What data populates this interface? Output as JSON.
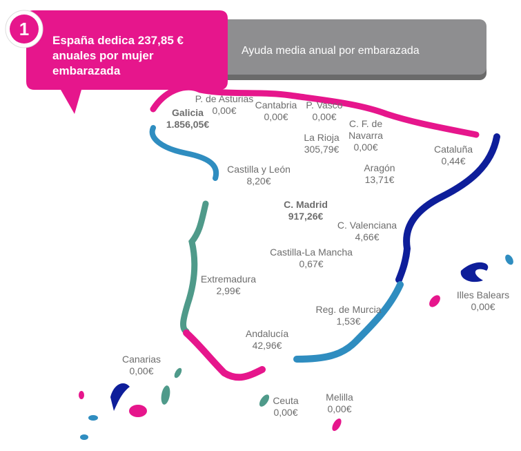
{
  "header": {
    "badge": "1",
    "title_lines": [
      "España dedica 237,85 €",
      "anuales por mujer",
      "embarazada"
    ],
    "subtitle": "Ayuda media anual por embarazada"
  },
  "regions": [
    {
      "name_lines": [
        "Galicia"
      ],
      "value": "1.856,05€",
      "bold": true
    },
    {
      "name_lines": [
        "P. de Asturias"
      ],
      "value": "0,00€"
    },
    {
      "name_lines": [
        "Cantabria"
      ],
      "value": "0,00€"
    },
    {
      "name_lines": [
        "P. Vasco"
      ],
      "value": "0,00€"
    },
    {
      "name_lines": [
        "C. F. de",
        "Navarra"
      ],
      "value": "0,00€"
    },
    {
      "name_lines": [
        "La Rioja"
      ],
      "value": "305,79€"
    },
    {
      "name_lines": [
        "Cataluña"
      ],
      "value": "0,44€"
    },
    {
      "name_lines": [
        "Castilla y León"
      ],
      "value": "8,20€"
    },
    {
      "name_lines": [
        "Aragón"
      ],
      "value": "13,71€"
    },
    {
      "name_lines": [
        "C. Madrid"
      ],
      "value": "917,26€",
      "bold": true
    },
    {
      "name_lines": [
        "C. Valenciana"
      ],
      "value": "4,66€"
    },
    {
      "name_lines": [
        "Castilla-La Mancha"
      ],
      "value": "0,67€"
    },
    {
      "name_lines": [
        "Extremadura"
      ],
      "value": "2,99€"
    },
    {
      "name_lines": [
        "Illes Balears"
      ],
      "value": "0,00€"
    },
    {
      "name_lines": [
        "Reg. de Murcia"
      ],
      "value": "1,53€"
    },
    {
      "name_lines": [
        "Andalucía"
      ],
      "value": "42,96€"
    },
    {
      "name_lines": [
        "Canarias"
      ],
      "value": "0,00€"
    },
    {
      "name_lines": [
        "Ceuta"
      ],
      "value": "0,00€"
    },
    {
      "name_lines": [
        "Melilla"
      ],
      "value": "0,00€"
    }
  ]
}
